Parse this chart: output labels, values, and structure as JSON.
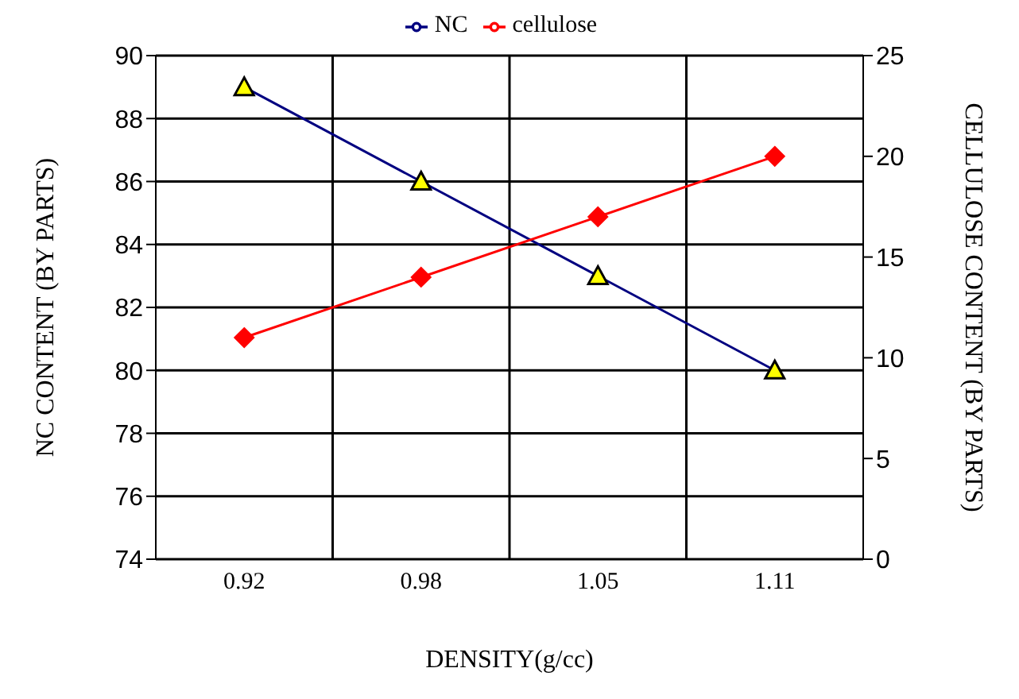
{
  "chart_data": {
    "type": "line",
    "xlabel": "DENSITY(g/cc)",
    "ylabel": "NC CONTENT  (BY PARTS)",
    "y2label": "CELLULOSE CONTENT (BY PARTS)",
    "categories": [
      "0.92",
      "0.98",
      "1.05",
      "1.11"
    ],
    "series": [
      {
        "name": "NC",
        "color": "#000080",
        "values": [
          89,
          86,
          83,
          80
        ],
        "marker": "triangle"
      },
      {
        "name": "cellulose",
        "color": "#ff0000",
        "values": [
          11,
          14,
          17,
          20
        ],
        "marker": "diamond",
        "axis": "y2"
      }
    ],
    "ylim": [
      74,
      90
    ],
    "yticks": [
      74,
      76,
      78,
      80,
      82,
      84,
      86,
      88,
      90
    ],
    "y2lim": [
      0,
      25
    ],
    "y2ticks": [
      0,
      5,
      10,
      15,
      20,
      25
    ],
    "grid": true,
    "legend": "top",
    "line_style": "solid"
  }
}
